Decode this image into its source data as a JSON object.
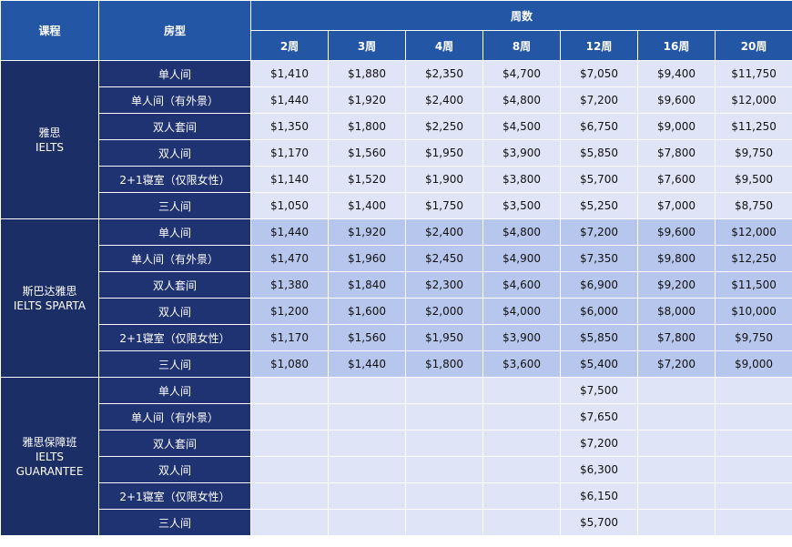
{
  "header": {
    "course": "课程",
    "room": "房型",
    "weeks": "周数",
    "week_cols": [
      "2周",
      "3周",
      "4周",
      "8周",
      "12周",
      "16周",
      "20周"
    ]
  },
  "groups": [
    {
      "label": [
        "雅思",
        "IELTS"
      ],
      "rows": [
        {
          "room": "单人间",
          "prices": [
            "$1,410",
            "$1,880",
            "$2,350",
            "$4,700",
            "$7,050",
            "$9,400",
            "$11,750"
          ]
        },
        {
          "room": "单人间（有外景）",
          "prices": [
            "$1,440",
            "$1,920",
            "$2,400",
            "$4,800",
            "$7,200",
            "$9,600",
            "$12,000"
          ]
        },
        {
          "room": "双人套间",
          "prices": [
            "$1,350",
            "$1,800",
            "$2,250",
            "$4,500",
            "$6,750",
            "$9,000",
            "$11,250"
          ]
        },
        {
          "room": "双人间",
          "prices": [
            "$1,170",
            "$1,560",
            "$1,950",
            "$3,900",
            "$5,850",
            "$7,800",
            "$9,750"
          ]
        },
        {
          "room": "2+1寝室（仅限女性）",
          "prices": [
            "$1,140",
            "$1,520",
            "$1,900",
            "$3,800",
            "$5,700",
            "$7,600",
            "$9,500"
          ]
        },
        {
          "room": "三人间",
          "prices": [
            "$1,050",
            "$1,400",
            "$1,750",
            "$3,500",
            "$5,250",
            "$7,000",
            "$8,750"
          ]
        }
      ]
    },
    {
      "label": [
        "斯巴达雅思",
        "IELTS SPARTA"
      ],
      "rows": [
        {
          "room": "单人间",
          "prices": [
            "$1,440",
            "$1,920",
            "$2,400",
            "$4,800",
            "$7,200",
            "$9,600",
            "$12,000"
          ]
        },
        {
          "room": "单人间（有外景）",
          "prices": [
            "$1,470",
            "$1,960",
            "$2,450",
            "$4,900",
            "$7,350",
            "$9,800",
            "$12,250"
          ]
        },
        {
          "room": "双人套间",
          "prices": [
            "$1,380",
            "$1,840",
            "$2,300",
            "$4,600",
            "$6,900",
            "$9,200",
            "$11,500"
          ]
        },
        {
          "room": "双人间",
          "prices": [
            "$1,200",
            "$1,600",
            "$2,000",
            "$4,000",
            "$6,000",
            "$8,000",
            "$10,000"
          ]
        },
        {
          "room": "2+1寝室（仅限女性）",
          "prices": [
            "$1,170",
            "$1,560",
            "$1,950",
            "$3,900",
            "$5,850",
            "$7,800",
            "$9,750"
          ]
        },
        {
          "room": "三人间",
          "prices": [
            "$1,080",
            "$1,440",
            "$1,800",
            "$3,600",
            "$5,400",
            "$7,200",
            "$9,000"
          ]
        }
      ]
    },
    {
      "label": [
        "雅思保障班",
        "IELTS",
        "GUARANTEE"
      ],
      "rows": [
        {
          "room": "单人间",
          "prices": [
            null,
            null,
            null,
            null,
            "$7,500",
            null,
            null
          ]
        },
        {
          "room": "单人间（有外景）",
          "prices": [
            null,
            null,
            null,
            null,
            "$7,650",
            null,
            null
          ]
        },
        {
          "room": "双人套间",
          "prices": [
            null,
            null,
            null,
            null,
            "$7,200",
            null,
            null
          ]
        },
        {
          "room": "双人间",
          "prices": [
            null,
            null,
            null,
            null,
            "$6,300",
            null,
            null
          ]
        },
        {
          "room": "2+1寝室（仅限女性）",
          "prices": [
            null,
            null,
            null,
            null,
            "$6,150",
            null,
            null
          ]
        },
        {
          "room": "三人间",
          "prices": [
            null,
            null,
            null,
            null,
            "$5,700",
            null,
            null
          ]
        }
      ]
    }
  ]
}
